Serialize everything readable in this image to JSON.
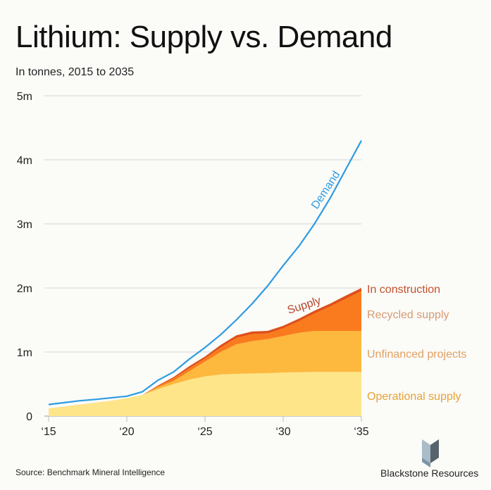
{
  "title": "Lithium: Supply vs. Demand",
  "subtitle": "In tonnes, 2015 to 2035",
  "source": "Source: Benchmark Mineral Intelligence",
  "brand": "Blackstone Resources",
  "chart_data": {
    "type": "area",
    "title": "Lithium: Supply vs. Demand",
    "subtitle": "In tonnes, 2015 to 2035",
    "x": [
      2015,
      2016,
      2017,
      2018,
      2019,
      2020,
      2021,
      2022,
      2023,
      2024,
      2025,
      2026,
      2027,
      2028,
      2029,
      2030,
      2031,
      2032,
      2033,
      2034,
      2035
    ],
    "x_ticks": [
      "‘15",
      "‘20",
      "‘25",
      "‘30",
      "‘35"
    ],
    "x_tick_values": [
      2015,
      2020,
      2025,
      2030,
      2035
    ],
    "y_ticks": [
      "0",
      "1m",
      "2m",
      "3m",
      "4m",
      "5m"
    ],
    "y_tick_values": [
      0,
      1000000,
      2000000,
      3000000,
      4000000,
      5000000
    ],
    "ylim": [
      0,
      5000000
    ],
    "grid": true,
    "stacked_series": [
      {
        "name": "Operational supply",
        "color": "#fee589",
        "values": [
          120000,
          150000,
          180000,
          210000,
          240000,
          280000,
          330000,
          420000,
          500000,
          570000,
          620000,
          650000,
          660000,
          665000,
          670000,
          680000,
          685000,
          690000,
          690000,
          690000,
          690000
        ]
      },
      {
        "name": "Unfinanced projects",
        "color": "#fdb83e",
        "values": [
          0,
          0,
          0,
          0,
          0,
          0,
          0,
          30000,
          50000,
          130000,
          230000,
          350000,
          460000,
          505000,
          530000,
          570000,
          615000,
          640000,
          640000,
          640000,
          640000
        ]
      },
      {
        "name": "Recycled supply",
        "color": "#f97b1d",
        "values": [
          0,
          0,
          0,
          0,
          0,
          0,
          0,
          20000,
          40000,
          50000,
          50000,
          70000,
          100000,
          110000,
          90000,
          120000,
          180000,
          270000,
          380000,
          500000,
          620000
        ]
      },
      {
        "name": "In construction",
        "color": "#df5019",
        "values": [
          0,
          0,
          0,
          0,
          0,
          0,
          0,
          10000,
          20000,
          30000,
          30000,
          40000,
          40000,
          40000,
          40000,
          40000,
          40000,
          45000,
          45000,
          50000,
          50000
        ]
      }
    ],
    "legend_colors": [
      "#c4502c",
      "#d89a72",
      "#e0a062",
      "#e6a235"
    ],
    "line_series": {
      "name": "Demand",
      "color": "#2e9be2",
      "values": [
        180000,
        210000,
        240000,
        260000,
        285000,
        310000,
        380000,
        560000,
        690000,
        890000,
        1070000,
        1270000,
        1500000,
        1750000,
        2030000,
        2350000,
        2650000,
        3000000,
        3400000,
        3850000,
        4300000
      ]
    },
    "annotations": [
      "Supply"
    ],
    "legend_placement": "right"
  }
}
